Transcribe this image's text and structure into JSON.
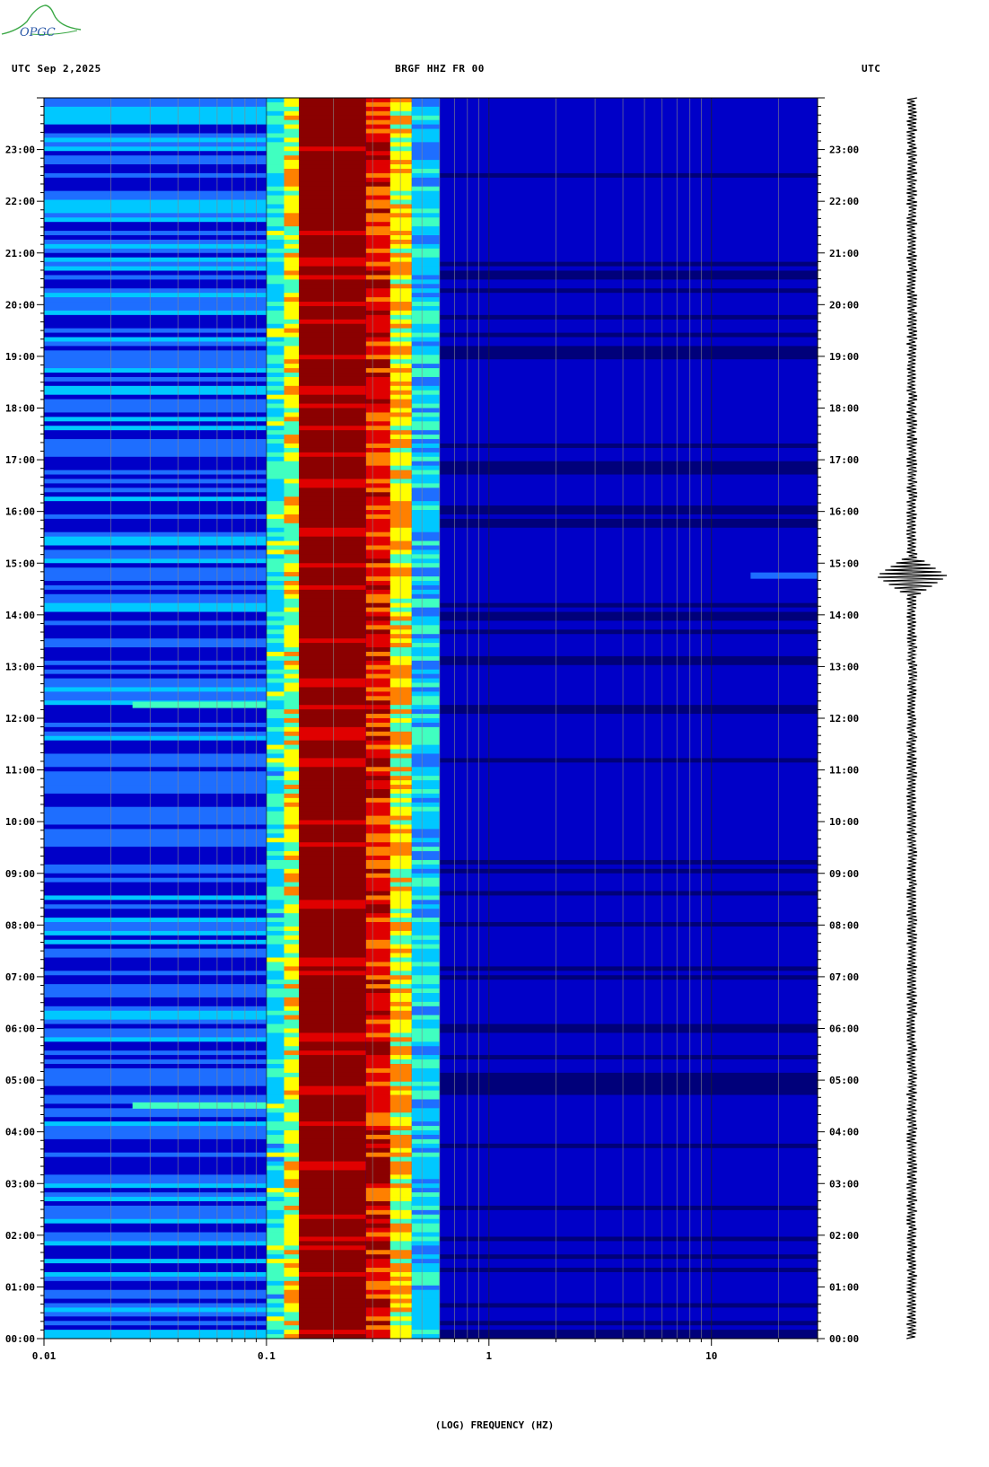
{
  "logo": {
    "text": "OPGC"
  },
  "header": {
    "left": "UTC  Sep 2,2025",
    "center": "BRGF HHZ FR 00",
    "right": "UTC"
  },
  "chart_data": {
    "type": "heatmap",
    "title": "BRGF HHZ FR 00",
    "date": "Sep 2,2025",
    "xlabel": "(LOG) FREQUENCY (HZ)",
    "ylabel": "UTC",
    "x_scale": "log",
    "xlim": [
      0.01,
      30
    ],
    "x_ticks": [
      {
        "value": 0.01,
        "label": "0.01"
      },
      {
        "value": 0.1,
        "label": "0.1"
      },
      {
        "value": 1,
        "label": "1"
      },
      {
        "value": 10,
        "label": "10"
      }
    ],
    "ylim_hours": [
      0,
      24
    ],
    "y_ticks": [
      "00:00",
      "01:00",
      "02:00",
      "03:00",
      "04:00",
      "05:00",
      "06:00",
      "07:00",
      "08:00",
      "09:00",
      "10:00",
      "11:00",
      "12:00",
      "13:00",
      "14:00",
      "15:00",
      "16:00",
      "17:00",
      "18:00",
      "19:00",
      "20:00",
      "21:00",
      "22:00",
      "23:00"
    ],
    "colorscale": [
      "#00007a",
      "#0000c8",
      "#1e6eff",
      "#00c8ff",
      "#40ffc0",
      "#ffff00",
      "#ff8000",
      "#e00000",
      "#8b0000"
    ],
    "bands": [
      {
        "f_min": 0.01,
        "f_max": 0.1,
        "level": 0.22
      },
      {
        "f_min": 0.1,
        "f_max": 0.12,
        "level": 0.45
      },
      {
        "f_min": 0.12,
        "f_max": 0.14,
        "level": 0.62
      },
      {
        "f_min": 0.14,
        "f_max": 0.28,
        "level": 1.0
      },
      {
        "f_min": 0.28,
        "f_max": 0.36,
        "level": 0.85
      },
      {
        "f_min": 0.36,
        "f_max": 0.45,
        "level": 0.65
      },
      {
        "f_min": 0.45,
        "f_max": 0.6,
        "level": 0.38
      },
      {
        "f_min": 0.6,
        "f_max": 30,
        "level": 0.05
      }
    ],
    "events": [
      {
        "hour": 12.25,
        "f_min": 0.025,
        "f_max": 0.1,
        "level": 0.5
      },
      {
        "hour": 4.5,
        "f_min": 0.025,
        "f_max": 0.1,
        "level": 0.55
      },
      {
        "hour": 14.75,
        "f_min": 15,
        "f_max": 30,
        "level": 0.3
      }
    ],
    "trace": {
      "event_hour": 14.75
    }
  }
}
